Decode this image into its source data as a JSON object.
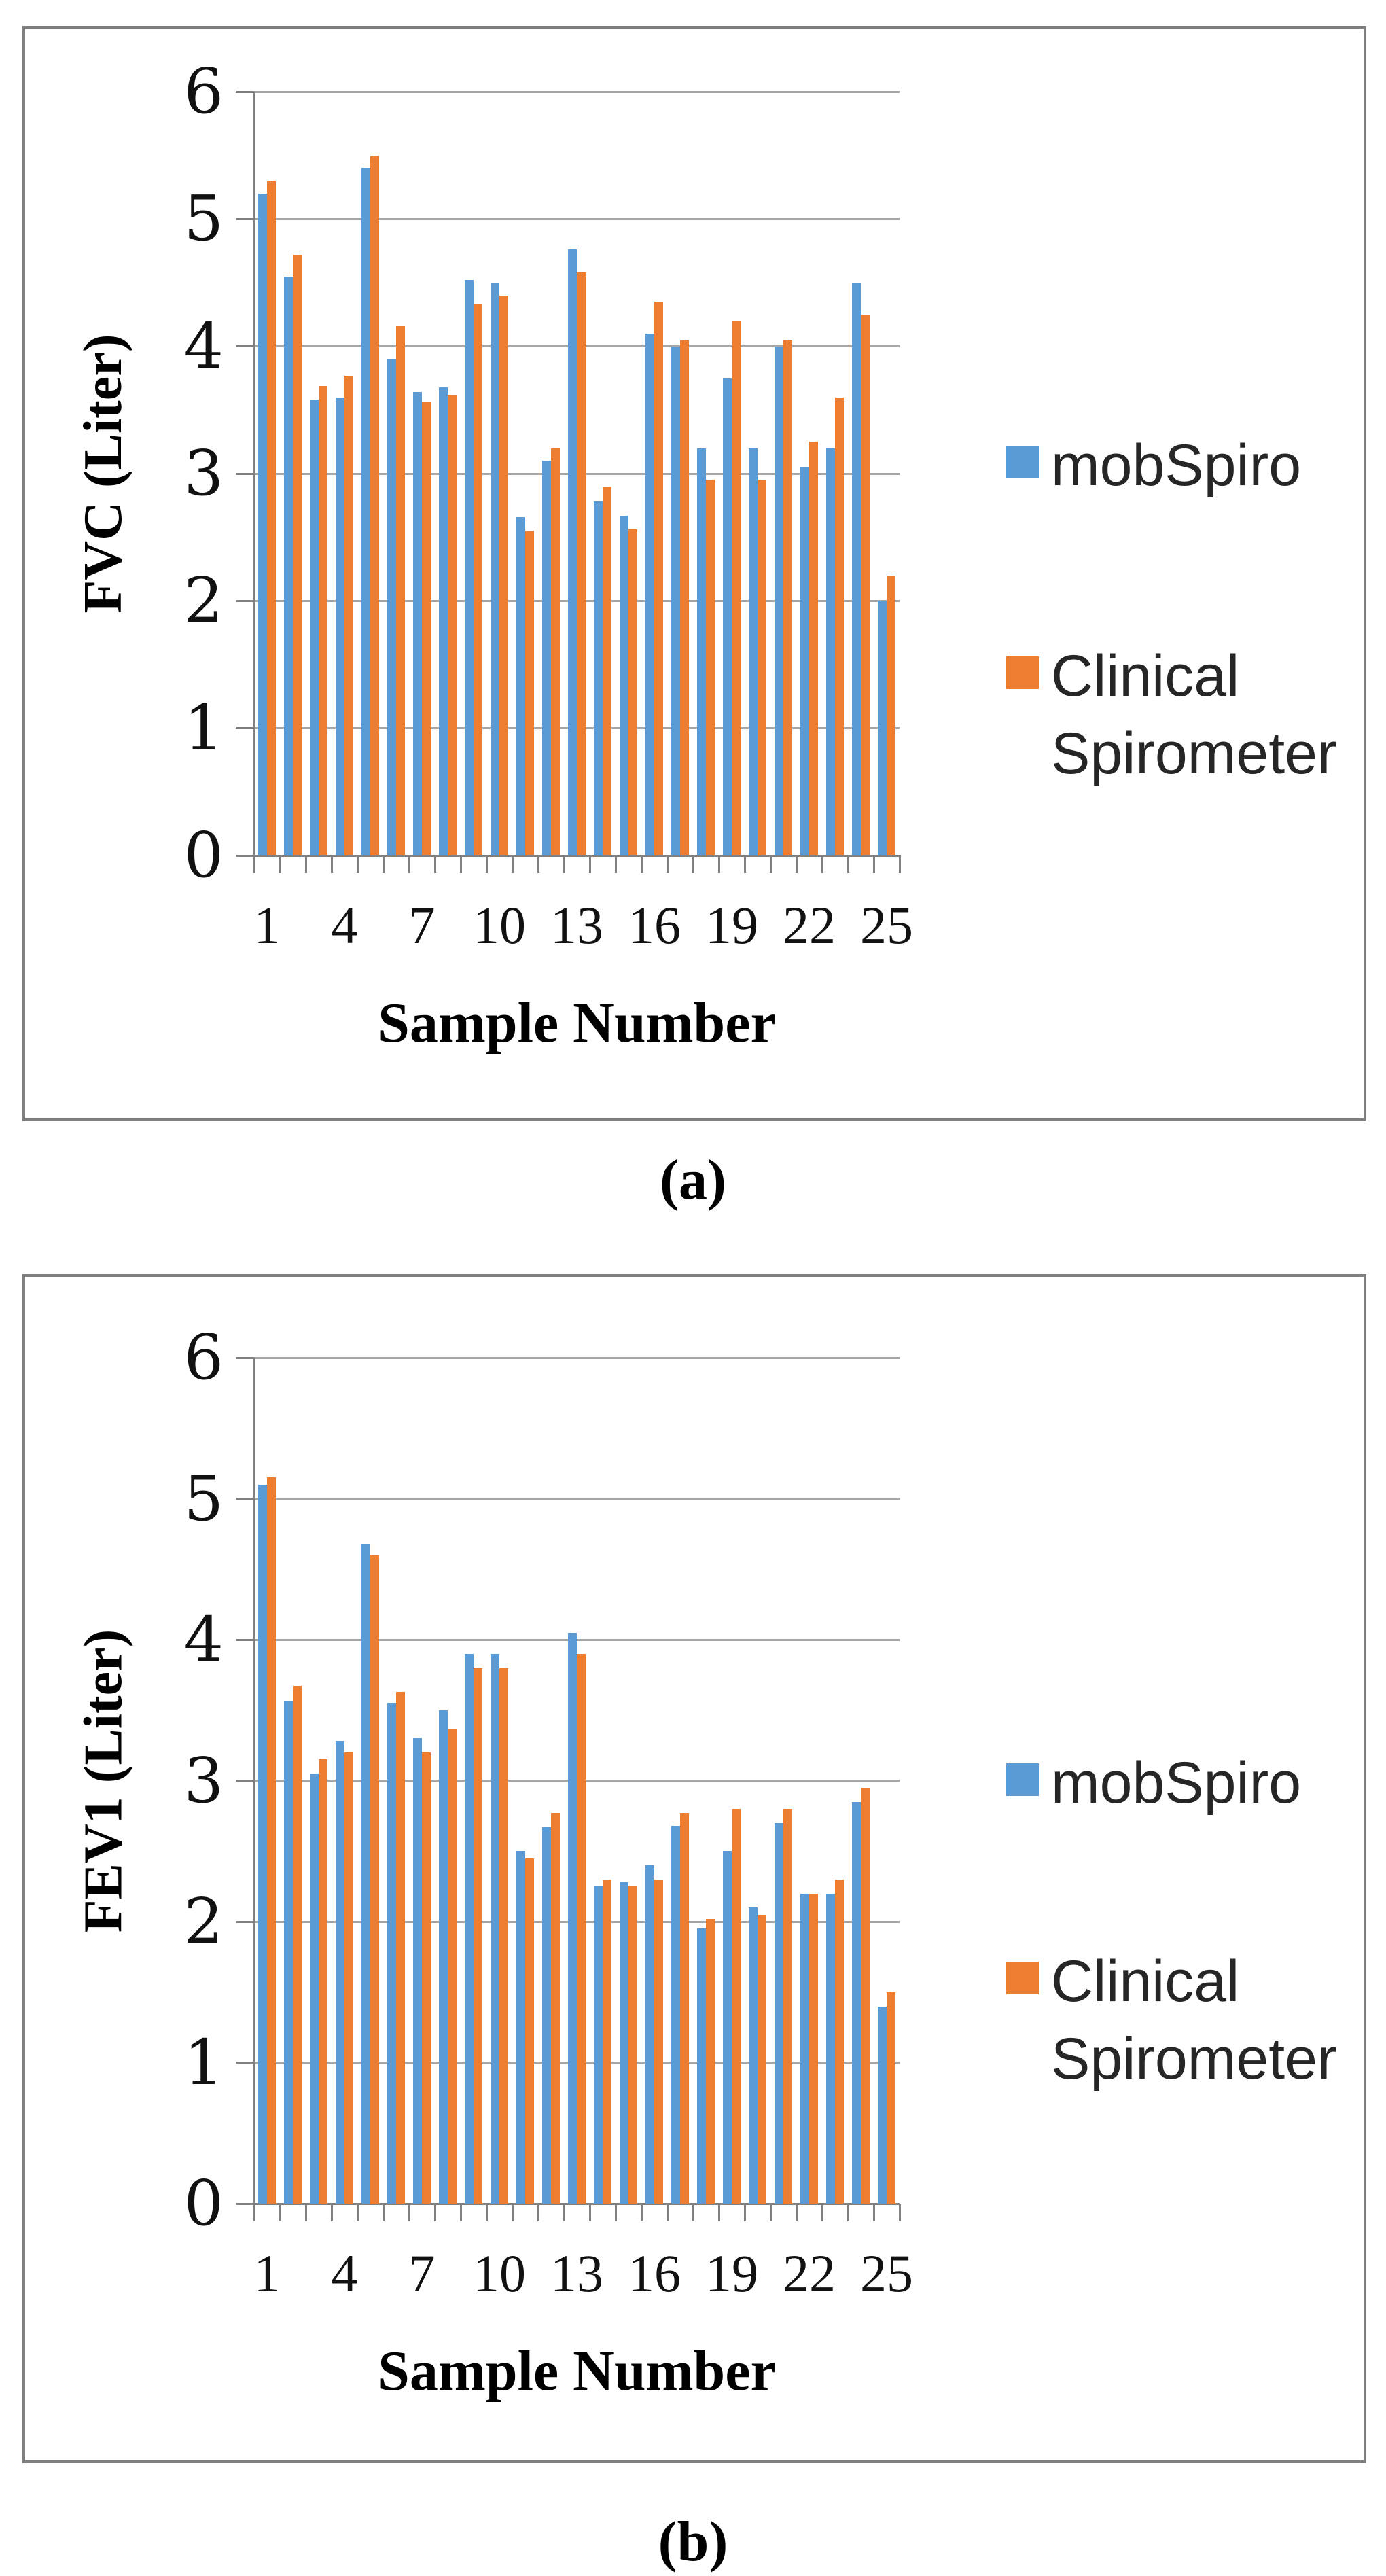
{
  "colors": {
    "mobspiro_blue": "#5B9BD5",
    "clinical_orange": "#ED7D31",
    "gridline_gray": "#A6A6A6",
    "axis_gray": "#808080",
    "panel_border_gray": "#7F7F7F",
    "background": "#FFFFFF"
  },
  "legend": {
    "items": [
      {
        "label": "mobSpiro",
        "lines": [
          "mobSpiro"
        ],
        "color": "#5B9BD5"
      },
      {
        "label": "Clinical Spirometer",
        "lines": [
          "Clinical",
          "Spirometer"
        ],
        "color": "#ED7D31"
      }
    ]
  },
  "chart_data": [
    {
      "type": "bar",
      "panel_caption": "(a)",
      "title": "",
      "xlabel": "Sample Number",
      "ylabel": "FVC (Liter)",
      "ylim": [
        0,
        6
      ],
      "y_ticks": [
        0,
        1,
        2,
        3,
        4,
        5,
        6
      ],
      "x_tick_labels": [
        1,
        4,
        7,
        10,
        13,
        16,
        19,
        22,
        25
      ],
      "grid": "horizontal",
      "legend_position": "right",
      "categories": [
        1,
        2,
        3,
        4,
        5,
        6,
        7,
        8,
        9,
        10,
        11,
        12,
        13,
        14,
        15,
        16,
        17,
        18,
        19,
        20,
        21,
        22,
        23,
        24,
        25
      ],
      "series": [
        {
          "name": "mobSpiro",
          "color": "#5B9BD5",
          "values": [
            5.2,
            4.55,
            3.58,
            3.6,
            5.4,
            3.9,
            3.64,
            3.68,
            4.52,
            4.5,
            2.66,
            3.1,
            4.76,
            2.78,
            2.67,
            4.1,
            4.0,
            3.2,
            3.75,
            3.2,
            4.0,
            3.05,
            3.2,
            4.5,
            2.0
          ]
        },
        {
          "name": "Clinical Spirometer",
          "color": "#ED7D31",
          "values": [
            5.3,
            4.72,
            3.69,
            3.77,
            5.5,
            4.16,
            3.56,
            3.62,
            4.33,
            4.4,
            2.55,
            3.2,
            4.58,
            2.9,
            2.56,
            4.35,
            4.05,
            2.95,
            4.2,
            2.95,
            4.05,
            3.25,
            3.6,
            4.25,
            2.2
          ]
        }
      ]
    },
    {
      "type": "bar",
      "panel_caption": "(b)",
      "title": "",
      "xlabel": "Sample Number",
      "ylabel": "FEV1 (Liter)",
      "ylim": [
        0,
        6
      ],
      "y_ticks": [
        0,
        1,
        2,
        3,
        4,
        5,
        6
      ],
      "x_tick_labels": [
        1,
        4,
        7,
        10,
        13,
        16,
        19,
        22,
        25
      ],
      "grid": "horizontal",
      "legend_position": "right",
      "categories": [
        1,
        2,
        3,
        4,
        5,
        6,
        7,
        8,
        9,
        10,
        11,
        12,
        13,
        14,
        15,
        16,
        17,
        18,
        19,
        20,
        21,
        22,
        23,
        24,
        25
      ],
      "series": [
        {
          "name": "mobSpiro",
          "color": "#5B9BD5",
          "values": [
            5.1,
            3.56,
            3.05,
            3.28,
            4.68,
            3.55,
            3.3,
            3.5,
            3.9,
            3.9,
            2.5,
            2.67,
            4.05,
            2.25,
            2.28,
            2.4,
            2.68,
            1.95,
            2.5,
            2.1,
            2.7,
            2.2,
            2.2,
            2.85,
            1.4
          ]
        },
        {
          "name": "Clinical Spirometer",
          "color": "#ED7D31",
          "values": [
            5.15,
            3.67,
            3.15,
            3.2,
            4.6,
            3.63,
            3.2,
            3.37,
            3.8,
            3.8,
            2.45,
            2.77,
            3.9,
            2.3,
            2.25,
            2.3,
            2.77,
            2.02,
            2.8,
            2.05,
            2.8,
            2.2,
            2.3,
            2.95,
            1.5
          ]
        }
      ]
    }
  ]
}
